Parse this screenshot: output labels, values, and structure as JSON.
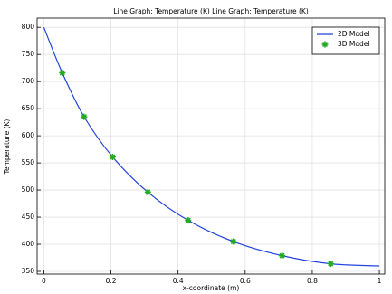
{
  "chart_data": {
    "type": "line",
    "title": "Line Graph: Temperature (K)  Line Graph: Temperature (K)",
    "x_label": "x-coordinate (m)",
    "y_label": "Temperature (K)",
    "series": [
      {
        "name": "2D Model",
        "type": "line",
        "color": "#2244dd",
        "x": [
          0,
          0.055,
          0.12,
          0.205,
          0.31,
          0.43,
          0.565,
          0.71,
          0.855,
          1
        ],
        "values": [
          800,
          716,
          635,
          561,
          496,
          444,
          405,
          379,
          364,
          360
        ]
      },
      {
        "name": "3D Model",
        "type": "scatter",
        "color": "#22aa22",
        "x": [
          0.055,
          0.12,
          0.205,
          0.31,
          0.43,
          0.565,
          0.71,
          0.855
        ],
        "values": [
          716,
          635,
          561,
          496,
          444,
          405,
          379,
          364
        ]
      }
    ],
    "xlim": [
      -0.02,
      1.016
    ],
    "ylim": [
      345,
      817
    ],
    "xticks": [
      0,
      0.2,
      0.4,
      0.6,
      0.8,
      1
    ],
    "yticks": [
      350,
      400,
      450,
      500,
      550,
      600,
      650,
      700,
      750,
      800
    ],
    "grid": true,
    "legend": "top-right"
  }
}
